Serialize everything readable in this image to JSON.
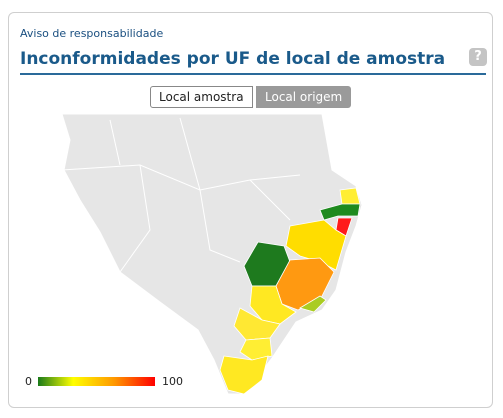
{
  "header": {
    "link": "Aviso de responsabilidade",
    "title": "Inconformidades por UF de local de amostra",
    "help_icon": "?"
  },
  "toggle": {
    "options": [
      "Local amostra",
      "Local origem"
    ]
  },
  "legend": {
    "min": 0,
    "max": 100
  }
}
